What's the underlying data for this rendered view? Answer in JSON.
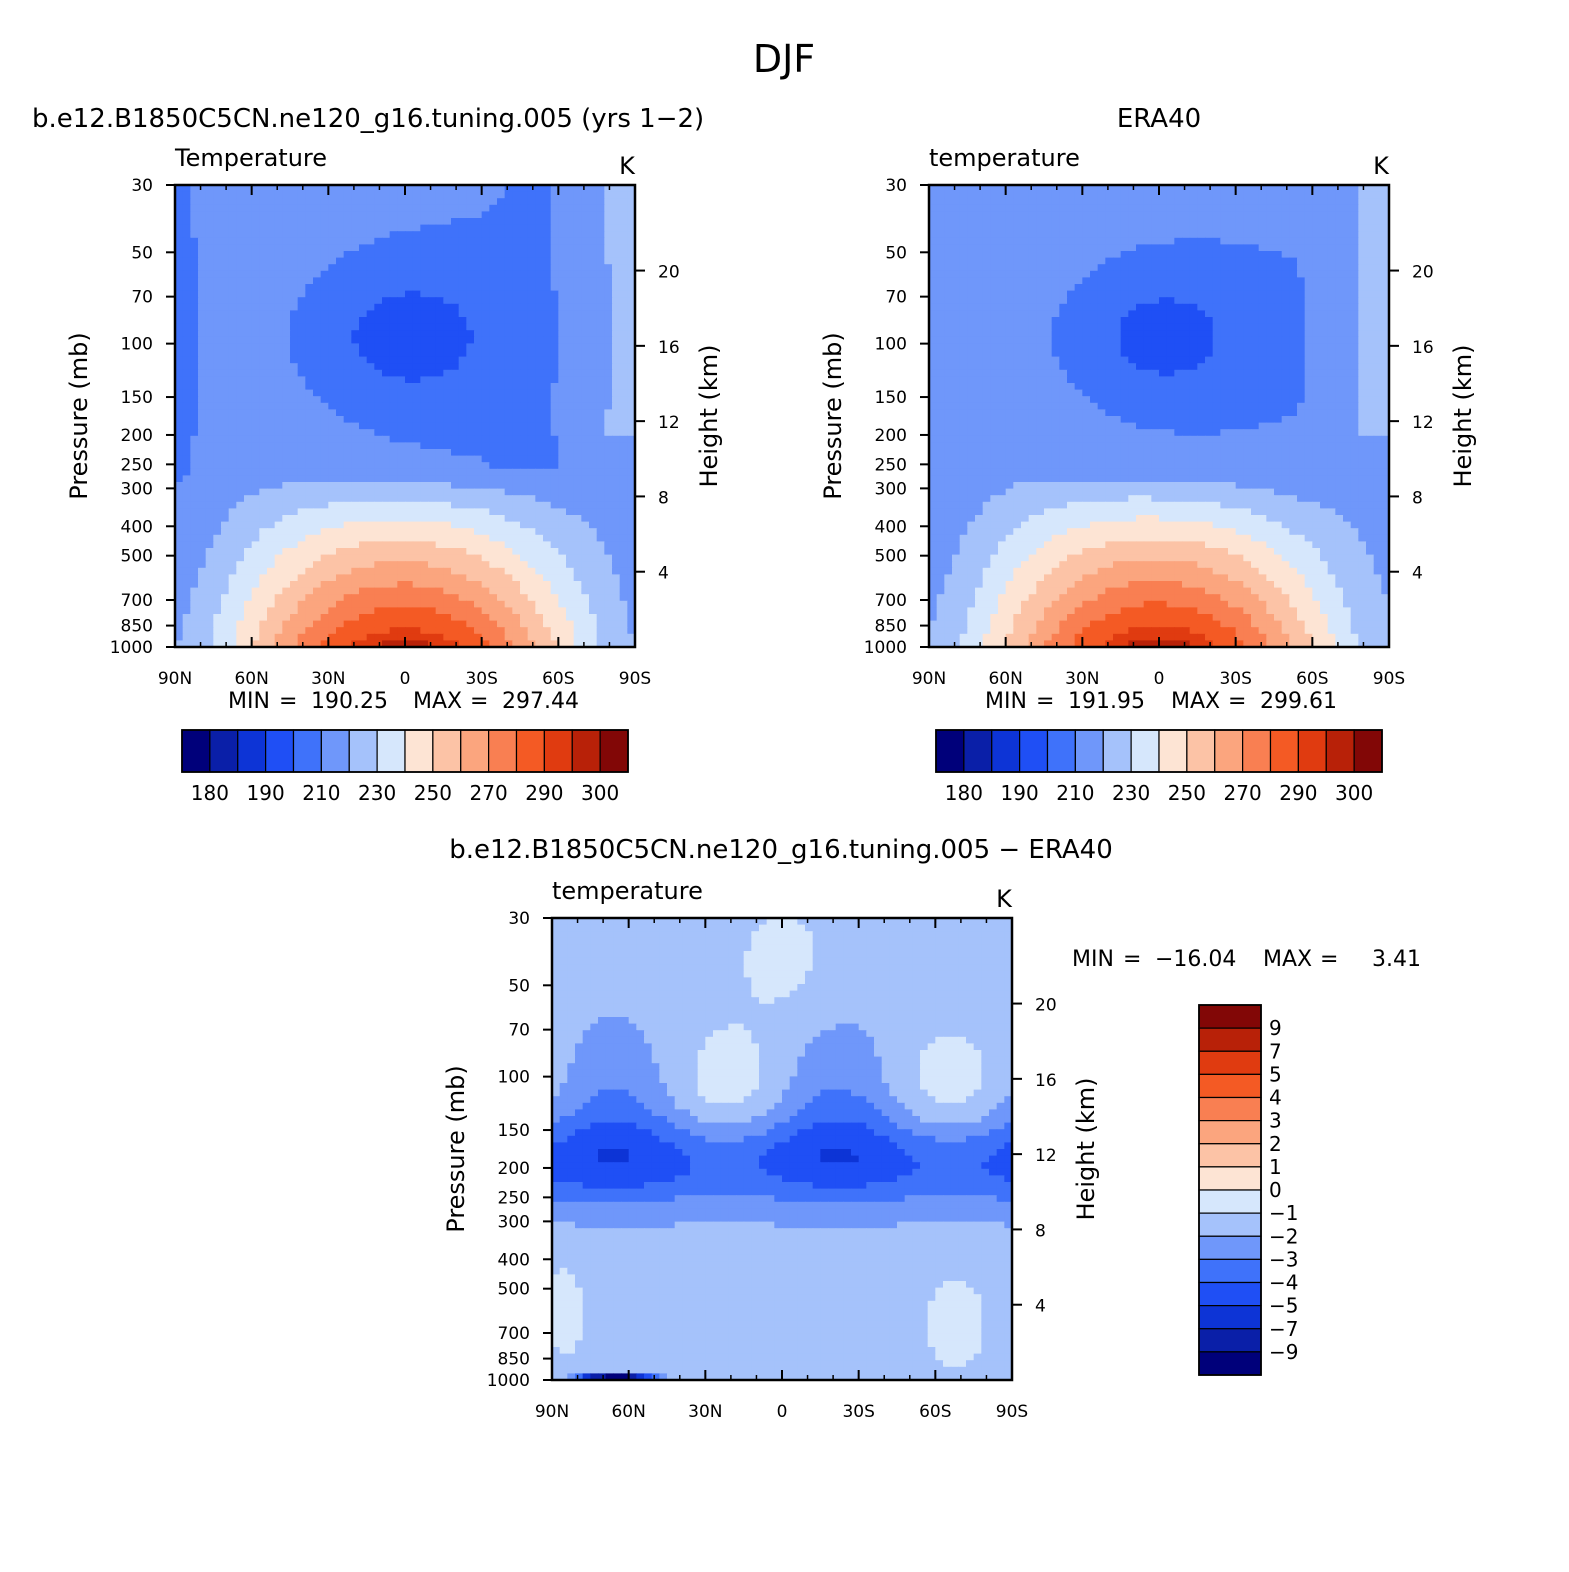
{
  "figure_title": "DJF",
  "chart_data": [
    {
      "type": "contour",
      "id": "model",
      "title": "b.e12.B1850C5CN.ne120_g16.tuning.005 (yrs 1−2)",
      "subtitle_left": "Temperature",
      "units": "K",
      "ylabel": "Pressure (mb)",
      "ylabel_right": "Height (km)",
      "x_ticks": [
        "90N",
        "60N",
        "30N",
        "0",
        "30S",
        "60S",
        "90S"
      ],
      "y_ticks": [
        "30",
        "50",
        "70",
        "100",
        "150",
        "200",
        "250",
        "300",
        "400",
        "500",
        "700",
        "850",
        "1000"
      ],
      "height_ticks": [
        "20",
        "16",
        "12",
        "8",
        "4"
      ],
      "min_label": "MIN",
      "max_label": "MAX",
      "min": "190.25",
      "max": "297.44",
      "colorbar_labels": [
        "180",
        "190",
        "210",
        "230",
        "250",
        "270",
        "290",
        "300"
      ]
    },
    {
      "type": "contour",
      "id": "obs",
      "title": "ERA40",
      "subtitle_left": "temperature",
      "units": "K",
      "ylabel": "Pressure (mb)",
      "ylabel_right": "Height (km)",
      "x_ticks": [
        "90N",
        "60N",
        "30N",
        "0",
        "30S",
        "60S",
        "90S"
      ],
      "y_ticks": [
        "30",
        "50",
        "70",
        "100",
        "150",
        "200",
        "250",
        "300",
        "400",
        "500",
        "700",
        "850",
        "1000"
      ],
      "height_ticks": [
        "20",
        "16",
        "12",
        "8",
        "4"
      ],
      "min_label": "MIN",
      "max_label": "MAX",
      "min": "191.95",
      "max": "299.61",
      "colorbar_labels": [
        "180",
        "190",
        "210",
        "230",
        "250",
        "270",
        "290",
        "300"
      ]
    },
    {
      "type": "contour",
      "id": "diff",
      "title": "b.e12.B1850C5CN.ne120_g16.tuning.005 − ERA40",
      "subtitle_left": "temperature",
      "units": "K",
      "ylabel": "Pressure (mb)",
      "ylabel_right": "Height (km)",
      "x_ticks": [
        "90N",
        "60N",
        "30N",
        "0",
        "30S",
        "60S",
        "90S"
      ],
      "y_ticks": [
        "30",
        "50",
        "70",
        "100",
        "150",
        "200",
        "250",
        "300",
        "400",
        "500",
        "700",
        "850",
        "1000"
      ],
      "height_ticks": [
        "20",
        "16",
        "12",
        "8",
        "4"
      ],
      "min_label": "MIN",
      "max_label": "MAX",
      "min": "−16.04",
      "max": "3.41",
      "colorbar_labels": [
        "9",
        "7",
        "5",
        "4",
        "3",
        "2",
        "1",
        "0",
        "−1",
        "−2",
        "−3",
        "−4",
        "−5",
        "−7",
        "−9"
      ]
    }
  ],
  "colors": {
    "abs_scale": [
      "#00007a",
      "#0a1fa8",
      "#0d34d6",
      "#1f4ff5",
      "#3f72fa",
      "#6f97fa",
      "#a5c2fb",
      "#d6e7fc",
      "#fde4d4",
      "#fcc3a6",
      "#fba57e",
      "#f97f52",
      "#f45a24",
      "#e03b10",
      "#b82108",
      "#820706"
    ],
    "diff_scale": [
      "#00007a",
      "#0a1fa8",
      "#0d34d6",
      "#1f4ff5",
      "#3f72fa",
      "#6f97fa",
      "#a5c2fb",
      "#d6e7fc",
      "#fde4d4",
      "#fcc3a6",
      "#fba57e",
      "#f97f52",
      "#f45a24",
      "#e03b10",
      "#b82108",
      "#820706"
    ]
  }
}
